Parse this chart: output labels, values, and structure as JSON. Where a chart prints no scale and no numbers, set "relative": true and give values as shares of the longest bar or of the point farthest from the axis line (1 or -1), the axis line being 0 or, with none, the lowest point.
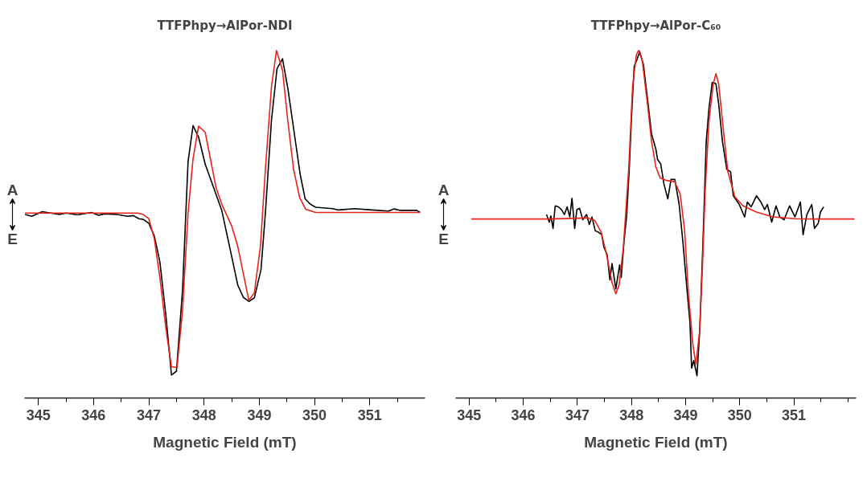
{
  "chart_data": [
    {
      "type": "line",
      "title": "TTFPhpy→AlPor-NDI",
      "xlabel": "Magnetic Field (mT)",
      "relative": true,
      "annotations": [
        "A",
        "E"
      ],
      "xlim": [
        344.75,
        352.0
      ],
      "xticks": [
        345,
        {
          "value": 345.5,
          "label": null
        },
        346,
        {
          "value": 346.5,
          "label": null
        },
        347,
        {
          "value": 347.5,
          "label": null
        },
        348,
        {
          "value": 348.5,
          "label": null
        },
        349,
        {
          "value": 349.5,
          "label": null
        },
        350,
        {
          "value": 350.5,
          "label": null
        },
        351,
        {
          "value": 351.5,
          "label": null
        }
      ],
      "grid": false,
      "tick_labels": "x",
      "line_style": "solid",
      "series": [
        {
          "color": "#000000",
          "x": [
            344.76,
            344.88,
            345.07,
            345.38,
            345.5,
            345.71,
            345.96,
            346.09,
            346.21,
            346.42,
            346.62,
            346.72,
            346.82,
            346.9,
            347.0,
            347.1,
            347.2,
            347.31,
            347.41,
            347.5,
            347.61,
            347.71,
            347.8,
            347.9,
            348.02,
            348.32,
            348.5,
            348.61,
            348.71,
            348.81,
            348.91,
            349.03,
            349.11,
            349.22,
            349.32,
            349.42,
            349.52,
            349.64,
            349.74,
            349.83,
            349.92,
            350.02,
            350.33,
            350.43,
            350.73,
            351.04,
            351.34,
            351.44,
            351.54,
            351.75,
            351.85,
            351.91
          ],
          "values": [
            0.528,
            0.523,
            0.536,
            0.528,
            0.532,
            0.527,
            0.534,
            0.526,
            0.53,
            0.528,
            0.523,
            0.525,
            0.516,
            0.514,
            0.503,
            0.466,
            0.392,
            0.236,
            0.066,
            0.077,
            0.31,
            0.68,
            0.784,
            0.751,
            0.673,
            0.54,
            0.407,
            0.325,
            0.29,
            0.278,
            0.288,
            0.369,
            0.532,
            0.799,
            0.947,
            0.976,
            0.887,
            0.754,
            0.643,
            0.573,
            0.558,
            0.549,
            0.545,
            0.541,
            0.545,
            0.541,
            0.538,
            0.544,
            0.54,
            0.54,
            0.54,
            0.534
          ]
        },
        {
          "color": "#e8231a",
          "x": [
            344.76,
            346.8,
            346.9,
            347.0,
            347.1,
            347.2,
            347.31,
            347.41,
            347.51,
            347.61,
            347.71,
            347.8,
            347.9,
            348.02,
            348.22,
            348.32,
            348.5,
            348.61,
            348.81,
            348.91,
            349.02,
            349.11,
            349.22,
            349.31,
            349.42,
            349.51,
            349.62,
            349.73,
            349.84,
            350.02,
            351.91
          ],
          "values": [
            0.532,
            0.532,
            0.528,
            0.516,
            0.458,
            0.347,
            0.199,
            0.09,
            0.088,
            0.251,
            0.532,
            0.688,
            0.782,
            0.765,
            0.603,
            0.558,
            0.495,
            0.436,
            0.281,
            0.303,
            0.436,
            0.658,
            0.895,
            1.0,
            0.943,
            0.806,
            0.658,
            0.577,
            0.543,
            0.534,
            0.534
          ]
        }
      ]
    },
    {
      "type": "line",
      "title": "TTFPhpy→AlPor-C₆₀",
      "xlabel": "Magnetic Field (mT)",
      "relative": true,
      "annotations": [
        "A",
        "E"
      ],
      "xlim": [
        344.75,
        352.15
      ],
      "xticks": [
        345,
        {
          "value": 345.5,
          "label": null
        },
        346,
        {
          "value": 346.5,
          "label": null
        },
        347,
        {
          "value": 347.5,
          "label": null
        },
        348,
        {
          "value": 348.5,
          "label": null
        },
        349,
        {
          "value": 349.5,
          "label": null
        },
        350,
        {
          "value": 350.5,
          "label": null
        },
        351,
        {
          "value": 351.5,
          "label": null
        },
        {
          "value": 352,
          "label": null
        }
      ],
      "grid": false,
      "tick_labels": "x",
      "line_style": "solid",
      "series": [
        {
          "color": "#000000",
          "x": [
            346.43,
            346.48,
            346.51,
            346.55,
            346.59,
            346.65,
            346.71,
            346.76,
            346.81,
            346.86,
            346.9,
            346.95,
            346.99,
            347.04,
            347.1,
            347.17,
            347.22,
            347.27,
            347.33,
            347.39,
            347.45,
            347.49,
            347.55,
            347.6,
            347.64,
            347.71,
            347.78,
            347.81,
            347.86,
            347.91,
            347.96,
            348.0,
            348.05,
            348.1,
            348.15,
            348.22,
            348.3,
            348.37,
            348.45,
            348.48,
            348.54,
            348.6,
            348.67,
            348.73,
            348.8,
            348.88,
            348.95,
            349.03,
            349.08,
            349.11,
            349.15,
            349.21,
            349.26,
            349.32,
            349.38,
            349.43,
            349.49,
            349.56,
            349.61,
            349.68,
            349.76,
            349.83,
            349.88,
            349.99,
            350.09,
            350.14,
            350.21,
            350.31,
            350.39,
            350.46,
            350.51,
            350.59,
            350.67,
            350.74,
            350.82,
            350.92,
            351.02,
            351.12,
            351.17,
            351.24,
            351.33,
            351.38,
            351.45,
            351.49,
            351.55
          ],
          "values": [
            0.528,
            0.506,
            0.524,
            0.488,
            0.553,
            0.55,
            0.541,
            0.528,
            0.55,
            0.521,
            0.575,
            0.488,
            0.542,
            0.546,
            0.513,
            0.528,
            0.499,
            0.521,
            0.481,
            0.477,
            0.47,
            0.434,
            0.412,
            0.34,
            0.387,
            0.314,
            0.383,
            0.347,
            0.448,
            0.524,
            0.665,
            0.81,
            0.955,
            0.973,
            0.997,
            0.959,
            0.854,
            0.76,
            0.716,
            0.687,
            0.673,
            0.615,
            0.573,
            0.629,
            0.629,
            0.557,
            0.448,
            0.303,
            0.217,
            0.086,
            0.108,
            0.064,
            0.195,
            0.448,
            0.738,
            0.832,
            0.908,
            0.904,
            0.846,
            0.738,
            0.658,
            0.651,
            0.582,
            0.557,
            0.521,
            0.564,
            0.55,
            0.582,
            0.564,
            0.542,
            0.557,
            0.506,
            0.553,
            0.521,
            0.513,
            0.553,
            0.521,
            0.564,
            0.47,
            0.528,
            0.557,
            0.488,
            0.503,
            0.535,
            0.55
          ]
        },
        {
          "color": "#e8231a",
          "x": [
            345.04,
            346.44,
            347.19,
            347.32,
            347.44,
            347.54,
            347.64,
            347.71,
            347.77,
            347.85,
            347.95,
            348.02,
            348.09,
            348.13,
            348.2,
            348.3,
            348.37,
            348.45,
            348.53,
            348.65,
            348.8,
            348.9,
            348.98,
            349.05,
            349.13,
            349.19,
            349.26,
            349.31,
            349.36,
            349.43,
            349.51,
            349.56,
            349.61,
            349.71,
            349.78,
            349.91,
            350.06,
            350.31,
            350.61,
            351.02,
            351.52,
            352.12
          ],
          "values": [
            0.515,
            0.515,
            0.518,
            0.511,
            0.477,
            0.412,
            0.332,
            0.3,
            0.325,
            0.434,
            0.665,
            0.897,
            0.988,
            1.0,
            0.97,
            0.839,
            0.738,
            0.665,
            0.633,
            0.626,
            0.622,
            0.586,
            0.484,
            0.303,
            0.158,
            0.097,
            0.195,
            0.376,
            0.593,
            0.796,
            0.904,
            0.933,
            0.904,
            0.752,
            0.651,
            0.579,
            0.553,
            0.535,
            0.521,
            0.516,
            0.515,
            0.515
          ]
        }
      ]
    }
  ]
}
